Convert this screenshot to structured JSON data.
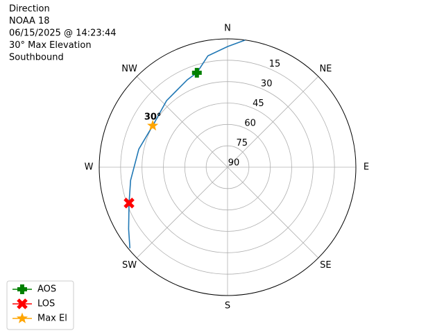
{
  "chart_data": {
    "type": "polar",
    "title": [
      "Direction",
      "NOAA 18",
      "06/15/2025 @ 14:23:44",
      "30° Max Elevation",
      "Southbound"
    ],
    "theta_direction": "clockwise",
    "theta_zero": "N",
    "thetaticks": [
      {
        "value": 0,
        "label": "N"
      },
      {
        "value": 45,
        "label": "NE"
      },
      {
        "value": 90,
        "label": "E"
      },
      {
        "value": 135,
        "label": "SE"
      },
      {
        "value": 180,
        "label": "S"
      },
      {
        "value": 225,
        "label": "SW"
      },
      {
        "value": 270,
        "label": "W"
      },
      {
        "value": 315,
        "label": "NW"
      }
    ],
    "rlim": [
      90,
      0
    ],
    "rticks": [
      90,
      75,
      60,
      45,
      30,
      15
    ],
    "grid": true,
    "series": [
      {
        "color": "#1f77b4",
        "marker": "none",
        "x": [
          7.8,
          0,
          350,
          342,
          335.3,
          317.5,
          299,
          281.5,
          262.3,
          250,
          238,
          230.3
        ],
        "values": [
          0.1,
          5.4,
          10.7,
          20.4,
          22.5,
          26.7,
          30,
          26.5,
          21.4,
          16.5,
          8.2,
          1
        ]
      },
      {
        "name": "AOS",
        "color": "#008000",
        "marker": "plus",
        "x": [
          342
        ],
        "values": [
          20.4
        ]
      },
      {
        "name": "LOS",
        "color": "#ff0000",
        "marker": "x",
        "x": [
          250
        ],
        "values": [
          16.5
        ]
      },
      {
        "name": "Max El",
        "color": "#ffa500",
        "marker": "star",
        "x": [
          299
        ],
        "values": [
          30
        ]
      }
    ],
    "annotation": "30°",
    "legend": "lower left"
  }
}
